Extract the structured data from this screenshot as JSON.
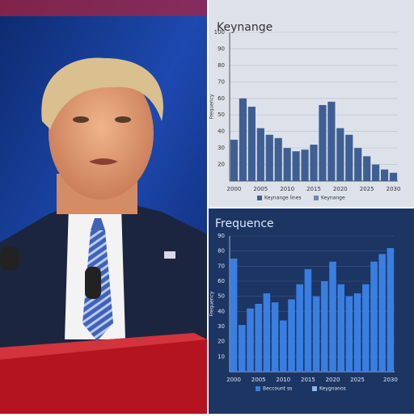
{
  "chart_data": [
    {
      "type": "bar",
      "title": "Keynange",
      "y_label": "Frequency",
      "categories": [
        "2000",
        null,
        null,
        "2005",
        null,
        null,
        "2010",
        null,
        null,
        "2015",
        null,
        null,
        "2020",
        null,
        null,
        "2025",
        null,
        null,
        "2030"
      ],
      "series": [
        {
          "name": "Keynange lines",
          "color": "#3f5f93",
          "values": [
            35,
            60,
            55,
            42,
            38,
            36,
            30,
            28,
            29,
            32,
            56,
            58,
            42,
            38,
            30,
            25,
            20,
            17,
            15
          ]
        }
      ],
      "legend_series": [
        {
          "name": "Keynange lines",
          "color": "#3f5f93"
        },
        {
          "name": "Keynange",
          "color": "#6f89b3"
        }
      ],
      "ylim": [
        10,
        100
      ],
      "yticks": [
        20,
        30,
        40,
        50,
        60,
        70,
        80,
        90,
        100
      ],
      "grid": true
    },
    {
      "type": "bar",
      "title": "Frequence",
      "y_label": "Frequency",
      "categories": [
        "2000",
        null,
        null,
        "2005",
        null,
        null,
        "2010",
        null,
        null,
        "2015",
        null,
        null,
        "2020",
        null,
        null,
        "2025",
        null,
        null,
        null,
        "2030"
      ],
      "series": [
        {
          "name": "Beccount ss",
          "color": "#3a7ee0",
          "values": [
            75,
            31,
            42,
            45,
            52,
            46,
            34,
            48,
            58,
            68,
            50,
            60,
            73,
            58,
            50,
            52,
            58,
            73,
            78,
            82
          ]
        }
      ],
      "legend_series": [
        {
          "name": "Beccount ss",
          "color": "#3a7ee0"
        },
        {
          "name": "Keygnanos",
          "color": "#8fb5ee"
        }
      ],
      "ylim": [
        0,
        90
      ],
      "yticks": [
        10,
        20,
        30,
        40,
        50,
        60,
        70,
        80,
        90
      ],
      "grid": true
    }
  ]
}
